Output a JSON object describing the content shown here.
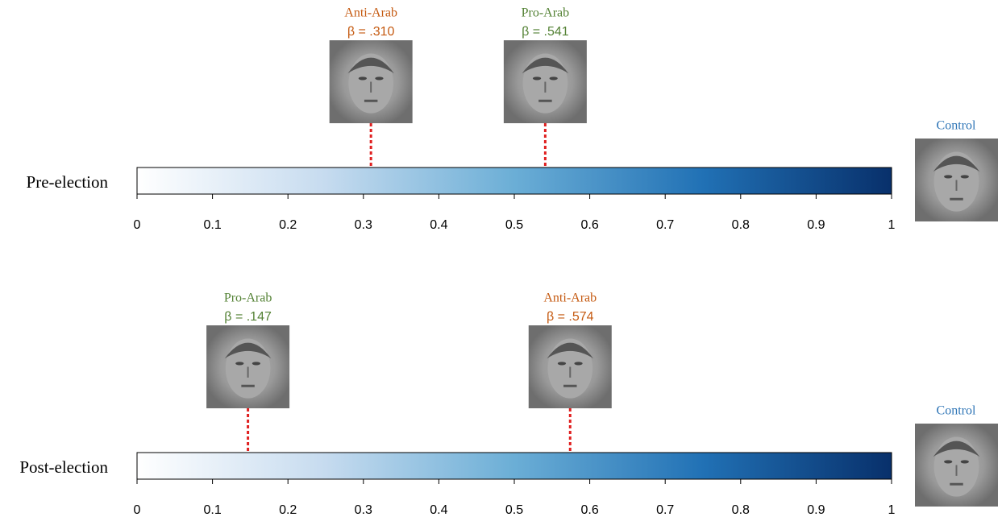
{
  "chart_data": [
    {
      "type": "scale",
      "label": "Pre-election",
      "control_label": "Control",
      "xlim": [
        0,
        1
      ],
      "xticks": [
        0,
        0.1,
        0.2,
        0.3,
        0.4,
        0.5,
        0.6,
        0.7,
        0.8,
        0.9,
        1
      ],
      "series": [
        {
          "name": "Anti-Arab",
          "color": "#c55a11",
          "values": [
            0.31
          ],
          "value_labels": [
            "β = .310"
          ]
        },
        {
          "name": "Pro-Arab",
          "color": "#548235",
          "values": [
            0.541
          ],
          "value_labels": [
            "β = .541"
          ]
        }
      ]
    },
    {
      "type": "scale",
      "label": "Post-election",
      "control_label": "Control",
      "xlim": [
        0,
        1
      ],
      "xticks": [
        0,
        0.1,
        0.2,
        0.3,
        0.4,
        0.5,
        0.6,
        0.7,
        0.8,
        0.9,
        1
      ],
      "series": [
        {
          "name": "Pro-Arab",
          "color": "#548235",
          "values": [
            0.147
          ],
          "value_labels": [
            "β = .147"
          ]
        },
        {
          "name": "Anti-Arab",
          "color": "#c55a11",
          "values": [
            0.574
          ],
          "value_labels": [
            "β = .574"
          ]
        }
      ]
    }
  ]
}
